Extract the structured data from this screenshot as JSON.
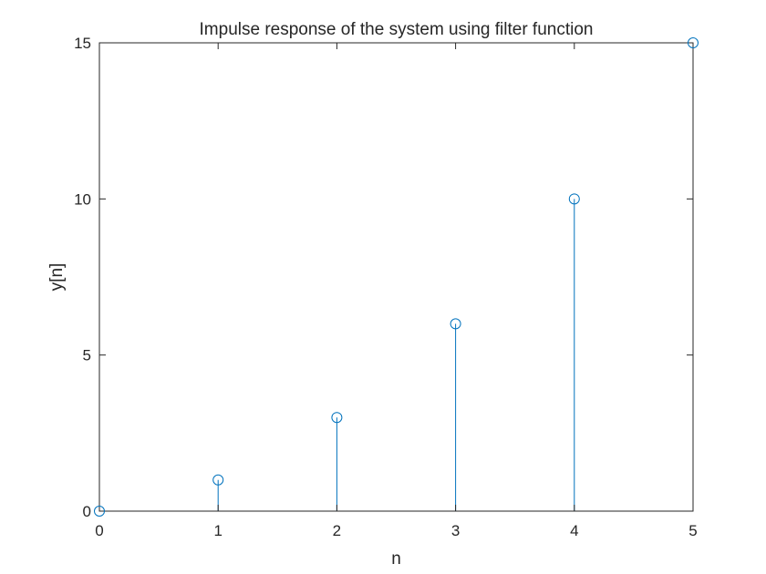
{
  "chart_data": {
    "type": "stem",
    "title": "Impulse response of the system using filter function",
    "xlabel": "n",
    "ylabel": "y[n]",
    "x": [
      0,
      1,
      2,
      3,
      4,
      5
    ],
    "values": [
      0,
      1,
      3,
      6,
      10,
      15
    ],
    "xlim": [
      0,
      5
    ],
    "ylim": [
      0,
      15
    ],
    "xticks": [
      "0",
      "1",
      "2",
      "3",
      "4",
      "5"
    ],
    "yticks": [
      "0",
      "5",
      "10",
      "15"
    ],
    "grid": false,
    "marker": "open-circle",
    "series_color": "#0072BD",
    "axis_color": "#262626"
  }
}
